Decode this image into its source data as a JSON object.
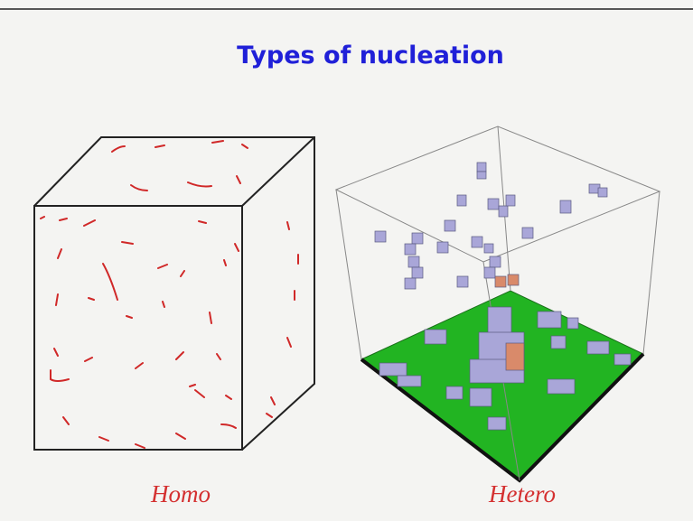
{
  "header": {
    "title": "Types of nucleation"
  },
  "figures": [
    {
      "label": "Homo"
    },
    {
      "label": "Hetero"
    }
  ]
}
